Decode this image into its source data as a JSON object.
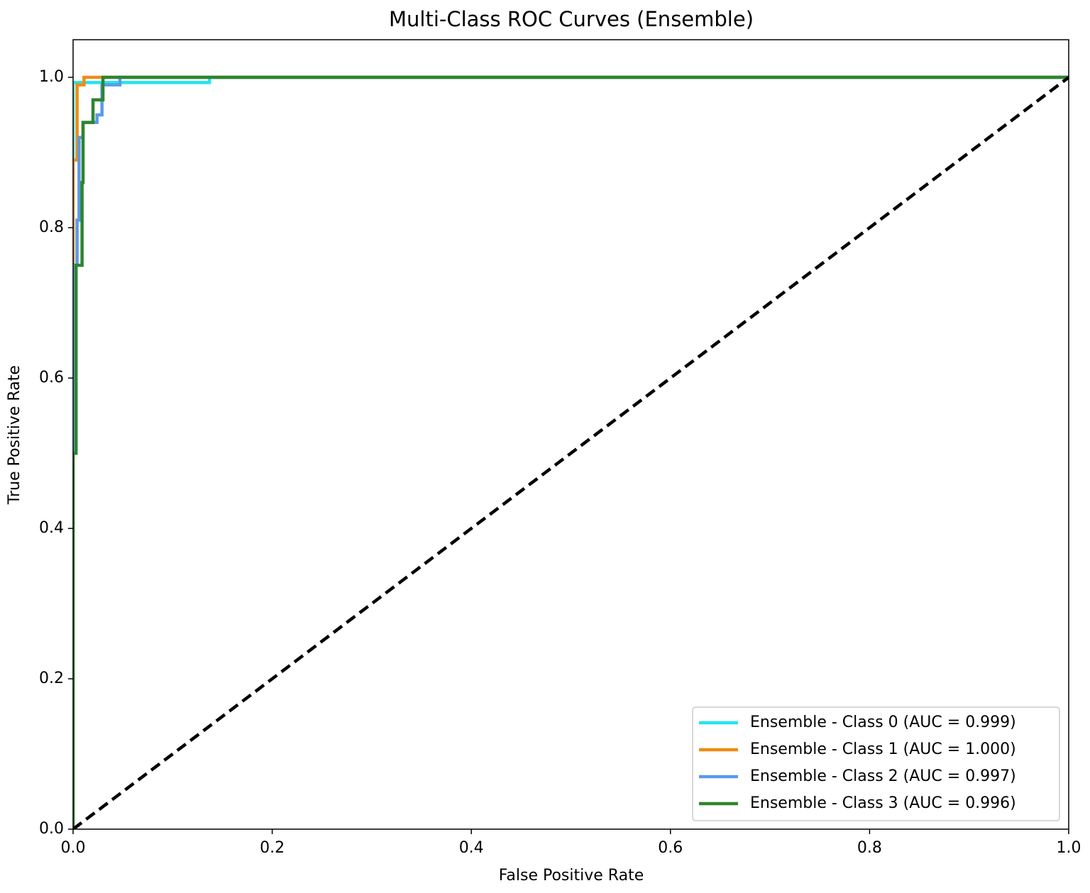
{
  "chart_data": {
    "type": "line",
    "title": "Multi-Class ROC Curves (Ensemble)",
    "x_label": "False Positive Rate",
    "y_label": "True Positive Rate",
    "xlim": [
      0,
      1
    ],
    "ylim": [
      0,
      1.05
    ],
    "xticks": [
      {
        "value": 0,
        "label": "0.0"
      },
      0.2,
      0.4,
      0.6,
      0.8,
      {
        "value": 1,
        "label": "1.0"
      }
    ],
    "yticks": [
      {
        "value": 0,
        "label": "0.0"
      },
      0.2,
      0.4,
      0.6,
      0.8,
      {
        "value": 1,
        "label": "1.0"
      }
    ],
    "grid": false,
    "legend_position": "lower-right",
    "series": [
      {
        "name": "Ensemble - Class 0 (AUC = 0.999)",
        "color": "#22e5ee",
        "x": [
          0,
          0,
          0.137,
          0.137,
          1
        ],
        "values": [
          0,
          0.993,
          0.993,
          1,
          1
        ]
      },
      {
        "name": "Ensemble - Class 1 (AUC = 1.000)",
        "color": "#f08c14",
        "x": [
          0,
          0,
          0.004,
          0.004,
          0.011,
          0.011,
          1
        ],
        "values": [
          0,
          0.89,
          0.89,
          0.99,
          0.99,
          1,
          1
        ]
      },
      {
        "name": "Ensemble - Class 2 (AUC = 0.997)",
        "color": "#5b9ae8",
        "x": [
          0,
          0,
          0.004,
          0.004,
          0.006,
          0.006,
          0.01,
          0.01,
          0.024,
          0.024,
          0.029,
          0.029,
          0.047,
          0.047,
          1
        ],
        "values": [
          0,
          0.75,
          0.75,
          0.81,
          0.81,
          0.92,
          0.92,
          0.94,
          0.94,
          0.95,
          0.95,
          0.99,
          0.99,
          1,
          1
        ]
      },
      {
        "name": "Ensemble - Class 3 (AUC = 0.996)",
        "color": "#2e852e",
        "x": [
          0,
          0,
          0.003,
          0.003,
          0.009,
          0.009,
          0.01,
          0.01,
          0.02,
          0.02,
          0.03,
          0.03,
          1
        ],
        "values": [
          0,
          0.5,
          0.5,
          0.75,
          0.75,
          0.86,
          0.86,
          0.94,
          0.94,
          0.97,
          0.97,
          1,
          1
        ]
      }
    ],
    "diagonal": {
      "color": "#000000",
      "x": [
        0,
        1
      ],
      "values": [
        0,
        1
      ]
    }
  }
}
